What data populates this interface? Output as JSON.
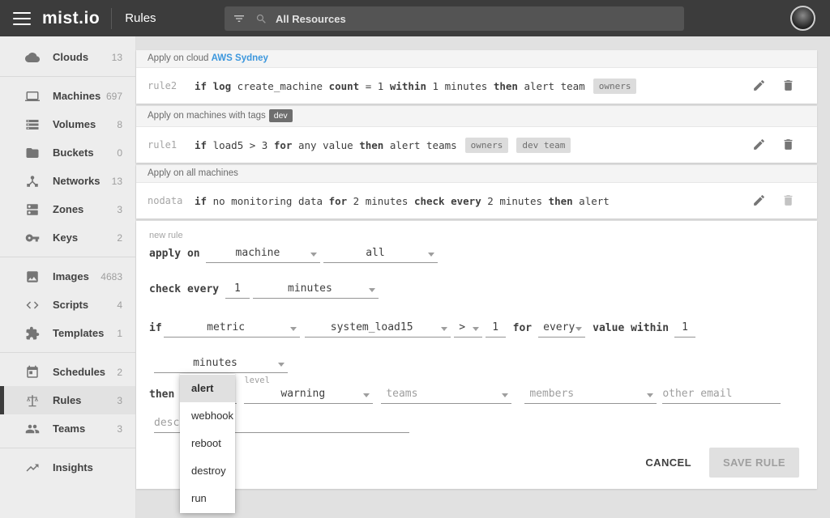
{
  "colors": {
    "header_bg": "#3c3c3c",
    "page_bg": "#e1e1e1",
    "sidebar_bg": "#ededed",
    "link_blue": "#3c97dd",
    "accent_dark": "#3f3f3f"
  },
  "header": {
    "logo": "mist.io",
    "page_title": "Rules",
    "search_value": "All Resources"
  },
  "sidebar": {
    "sections": [
      {
        "items": [
          {
            "icon": "cloud",
            "label": "Clouds",
            "count": "13"
          }
        ]
      },
      {
        "items": [
          {
            "icon": "laptop",
            "label": "Machines",
            "count": "697"
          },
          {
            "icon": "storage",
            "label": "Volumes",
            "count": "8"
          },
          {
            "icon": "folder",
            "label": "Buckets",
            "count": "0"
          },
          {
            "icon": "hub",
            "label": "Networks",
            "count": "13"
          },
          {
            "icon": "dns",
            "label": "Zones",
            "count": "3"
          },
          {
            "icon": "key",
            "label": "Keys",
            "count": "2"
          }
        ]
      },
      {
        "items": [
          {
            "icon": "image",
            "label": "Images",
            "count": "4683"
          },
          {
            "icon": "code",
            "label": "Scripts",
            "count": "4"
          },
          {
            "icon": "puzzle",
            "label": "Templates",
            "count": "1"
          }
        ]
      },
      {
        "items": [
          {
            "icon": "calendar",
            "label": "Schedules",
            "count": "2"
          },
          {
            "icon": "scales",
            "label": "Rules",
            "count": "3",
            "active": true
          },
          {
            "icon": "people",
            "label": "Teams",
            "count": "3"
          }
        ]
      },
      {
        "items": [
          {
            "icon": "trend",
            "label": "Insights",
            "count": ""
          }
        ]
      }
    ]
  },
  "rule_groups": [
    {
      "header_text": "Apply on cloud ",
      "header_link": "AWS Sydney",
      "header_tag": "",
      "rows": [
        {
          "name": "rule2",
          "tokens": [
            {
              "t": "if log",
              "b": true
            },
            {
              "t": " create_machine ",
              "b": false
            },
            {
              "t": "count",
              "b": true
            },
            {
              "t": " = 1 ",
              "b": false
            },
            {
              "t": "within",
              "b": true
            },
            {
              "t": " 1 minutes  ",
              "b": false
            },
            {
              "t": "then",
              "b": true
            },
            {
              "t": "  alert team",
              "b": false
            }
          ],
          "chips": [
            "owners"
          ],
          "delete_disabled": false
        }
      ]
    },
    {
      "header_text": "Apply on machines with tags",
      "header_link": "",
      "header_tag": "dev",
      "rows": [
        {
          "name": "rule1",
          "tokens": [
            {
              "t": "if",
              "b": true
            },
            {
              "t": " load5 > 3 ",
              "b": false
            },
            {
              "t": "for",
              "b": true
            },
            {
              "t": " any value  ",
              "b": false
            },
            {
              "t": "then",
              "b": true
            },
            {
              "t": "  alert teams",
              "b": false
            }
          ],
          "chips": [
            "owners",
            "dev team"
          ],
          "delete_disabled": false
        }
      ]
    },
    {
      "header_text": "Apply on all machines",
      "header_link": "",
      "header_tag": "",
      "rows": [
        {
          "name": "nodata",
          "tokens": [
            {
              "t": "if",
              "b": true
            },
            {
              "t": " no monitoring data ",
              "b": false
            },
            {
              "t": "for",
              "b": true
            },
            {
              "t": " 2 minutes ",
              "b": false
            },
            {
              "t": "check every",
              "b": true
            },
            {
              "t": " 2 minutes  ",
              "b": false
            },
            {
              "t": "then",
              "b": true
            },
            {
              "t": "  alert",
              "b": false
            }
          ],
          "chips": [],
          "delete_disabled": true
        }
      ]
    }
  ],
  "form": {
    "title": "new rule",
    "apply_on": {
      "label": "apply on ",
      "resource_type": "machine",
      "scope": "all"
    },
    "check_every": {
      "label": "check every ",
      "value": "1",
      "unit": "minutes"
    },
    "condition": {
      "label": "if",
      "target": "metric",
      "metric": "system_load15",
      "operator": ">",
      "threshold": "1",
      "for_label": "for",
      "aggregate": "every",
      "within_label": "value within",
      "within_value": "1",
      "window_unit": "minutes"
    },
    "action": {
      "label": "then",
      "selected": "alert",
      "level_label": "level",
      "level": "warning",
      "teams_placeholder": "teams",
      "members_placeholder": "members",
      "email_placeholder": "other email"
    },
    "description_placeholder": "description",
    "menu_options": [
      "alert",
      "webhook",
      "reboot",
      "destroy",
      "run"
    ],
    "buttons": {
      "cancel": "CANCEL",
      "save": "SAVE RULE"
    }
  }
}
